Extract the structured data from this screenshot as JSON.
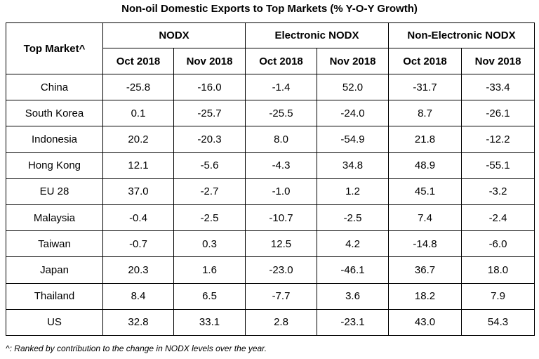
{
  "title": "Non-oil Domestic Exports to Top Markets (% Y-O-Y Growth)",
  "table": {
    "market_header": "Top Market^",
    "groups": [
      "NODX",
      "Electronic NODX",
      "Non-Electronic NODX"
    ],
    "subheaders": [
      "Oct 2018",
      "Nov 2018"
    ],
    "rows": [
      {
        "market": "China",
        "values": [
          "-25.8",
          "-16.0",
          "-1.4",
          "52.0",
          "-31.7",
          "-33.4"
        ]
      },
      {
        "market": "South Korea",
        "values": [
          "0.1",
          "-25.7",
          "-25.5",
          "-24.0",
          "8.7",
          "-26.1"
        ]
      },
      {
        "market": "Indonesia",
        "values": [
          "20.2",
          "-20.3",
          "8.0",
          "-54.9",
          "21.8",
          "-12.2"
        ]
      },
      {
        "market": "Hong Kong",
        "values": [
          "12.1",
          "-5.6",
          "-4.3",
          "34.8",
          "48.9",
          "-55.1"
        ]
      },
      {
        "market": "EU 28",
        "values": [
          "37.0",
          "-2.7",
          "-1.0",
          "1.2",
          "45.1",
          "-3.2"
        ]
      },
      {
        "market": "Malaysia",
        "values": [
          "-0.4",
          "-2.5",
          "-10.7",
          "-2.5",
          "7.4",
          "-2.4"
        ]
      },
      {
        "market": "Taiwan",
        "values": [
          "-0.7",
          "0.3",
          "12.5",
          "4.2",
          "-14.8",
          "-6.0"
        ]
      },
      {
        "market": "Japan",
        "values": [
          "20.3",
          "1.6",
          "-23.0",
          "-46.1",
          "36.7",
          "18.0"
        ]
      },
      {
        "market": "Thailand",
        "values": [
          "8.4",
          "6.5",
          "-7.7",
          "3.6",
          "18.2",
          "7.9"
        ]
      },
      {
        "market": "US",
        "values": [
          "32.8",
          "33.1",
          "2.8",
          "-23.1",
          "43.0",
          "54.3"
        ]
      }
    ]
  },
  "footnote": "^: Ranked by contribution to the change in NODX levels over the year."
}
